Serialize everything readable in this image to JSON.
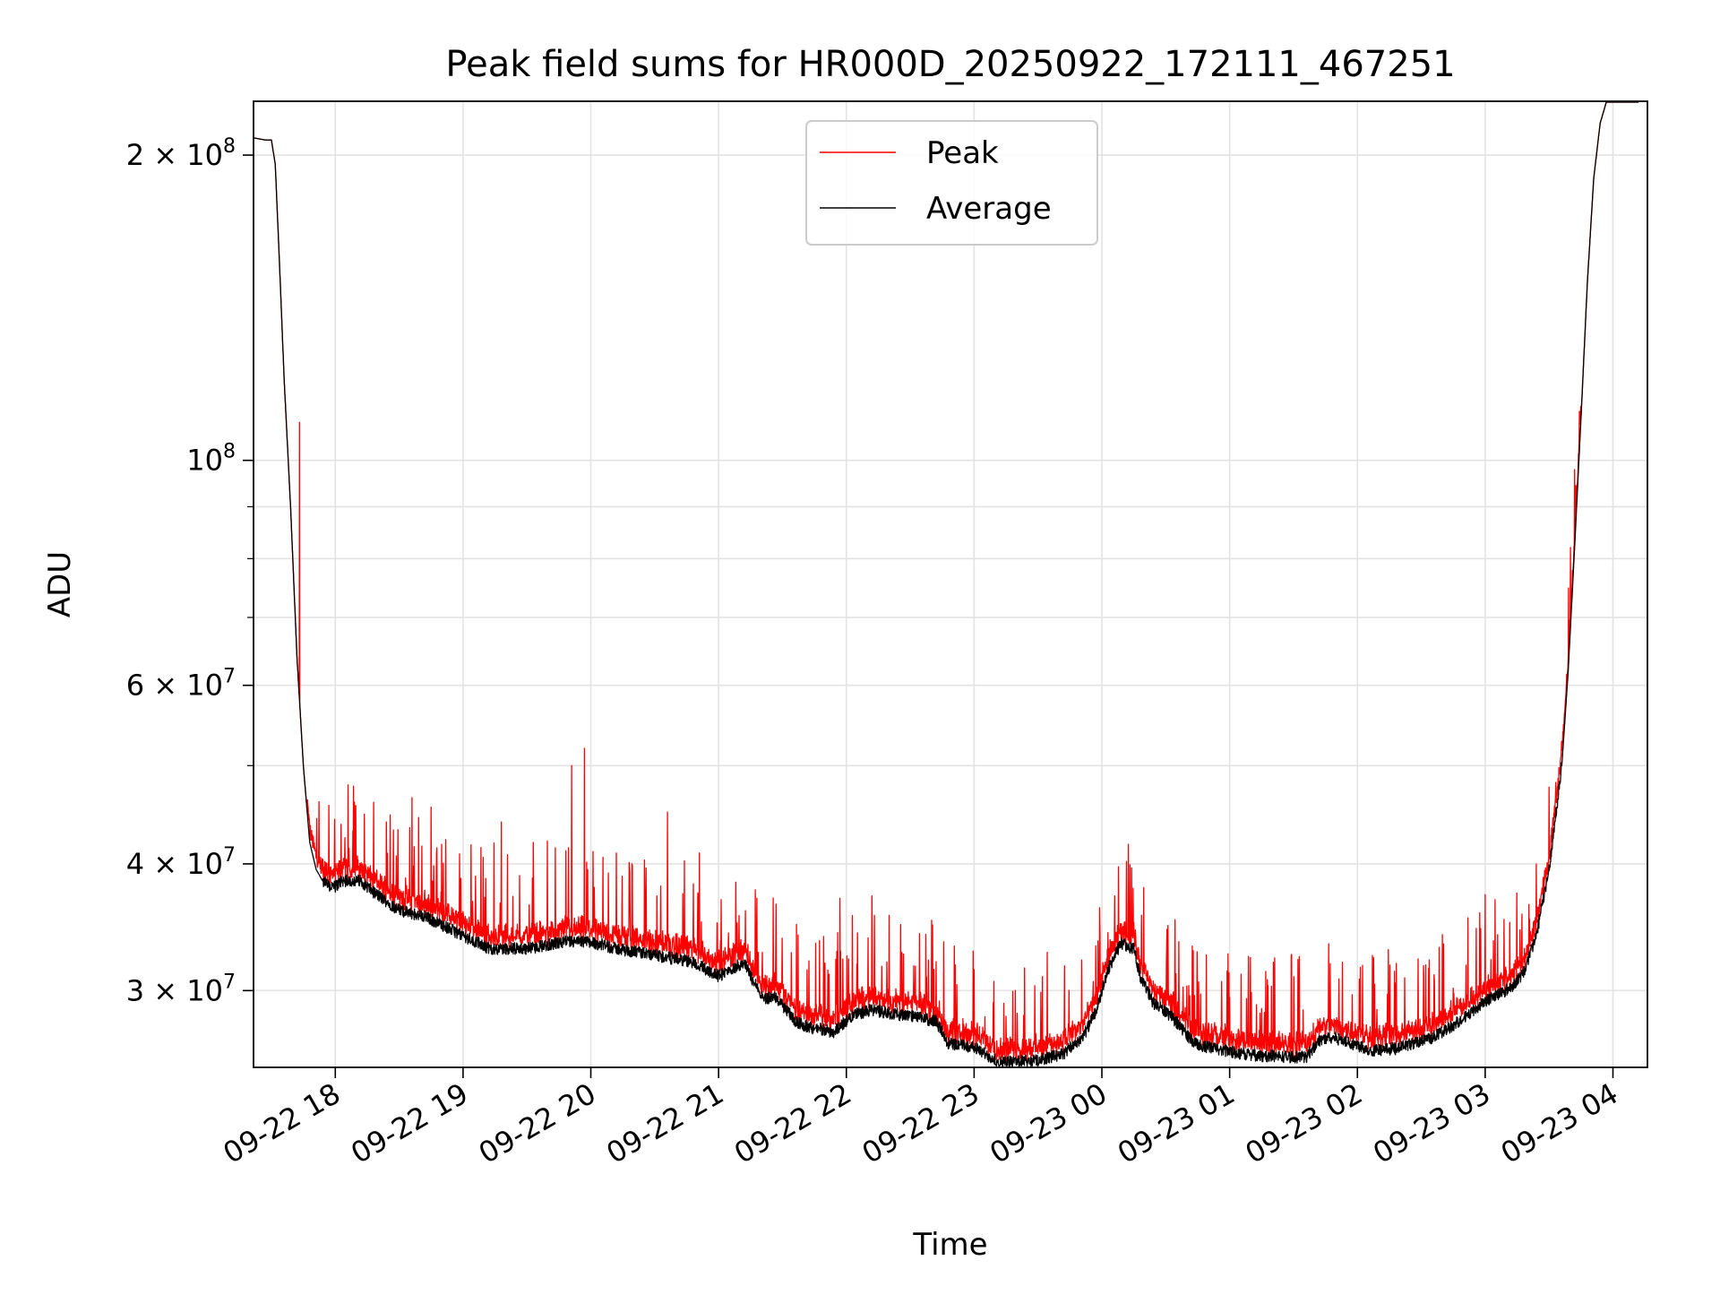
{
  "chart_data": {
    "type": "line",
    "title": "Peak field sums for HR000D_20250922_172111_467251",
    "xlabel": "Time",
    "ylabel": "ADU",
    "y_scale": "log",
    "ylim": [
      25200000,
      226000000
    ],
    "x_unit": "hours since 09-22 17:00",
    "xlim": [
      0.36,
      11.27
    ],
    "grid": true,
    "legend_position": "upper-center",
    "x_ticks": [
      {
        "value": 1,
        "label": "09-22 18"
      },
      {
        "value": 2,
        "label": "09-22 19"
      },
      {
        "value": 3,
        "label": "09-22 20"
      },
      {
        "value": 4,
        "label": "09-22 21"
      },
      {
        "value": 5,
        "label": "09-22 22"
      },
      {
        "value": 6,
        "label": "09-22 23"
      },
      {
        "value": 7,
        "label": "09-23 00"
      },
      {
        "value": 8,
        "label": "09-23 01"
      },
      {
        "value": 9,
        "label": "09-23 02"
      },
      {
        "value": 10,
        "label": "09-23 03"
      },
      {
        "value": 11,
        "label": "09-23 04"
      }
    ],
    "y_major_ticks": [
      {
        "value": 30000000,
        "label": "3 × 10",
        "exp": "7"
      },
      {
        "value": 40000000,
        "label": "4 × 10",
        "exp": "7"
      },
      {
        "value": 60000000,
        "label": "6 × 10",
        "exp": "7"
      },
      {
        "value": 100000000,
        "label": "10",
        "exp": "8"
      },
      {
        "value": 200000000,
        "label": "2 × 10",
        "exp": "8"
      }
    ],
    "y_minor_ticks": [
      50000000,
      70000000,
      80000000,
      90000000
    ],
    "series": [
      {
        "name": "Average",
        "color": "#000000",
        "x": [
          0.36,
          0.45,
          0.5,
          0.53,
          0.56,
          0.6,
          0.65,
          0.7,
          0.75,
          0.8,
          0.85,
          0.9,
          0.95,
          1.0,
          1.05,
          1.1,
          1.2,
          1.3,
          1.5,
          1.7,
          2.0,
          2.2,
          2.3,
          2.5,
          2.8,
          3.0,
          3.2,
          3.5,
          3.8,
          4.0,
          4.1,
          4.2,
          4.25,
          4.35,
          4.45,
          4.5,
          4.6,
          4.7,
          4.8,
          4.9,
          5.0,
          5.05,
          5.2,
          5.5,
          5.7,
          5.8,
          6.0,
          6.1,
          6.2,
          6.5,
          6.7,
          6.85,
          6.95,
          7.05,
          7.15,
          7.25,
          7.3,
          7.4,
          7.5,
          7.6,
          7.7,
          7.8,
          7.9,
          8.0,
          8.2,
          8.5,
          8.6,
          8.7,
          8.8,
          9.0,
          9.1,
          9.3,
          9.6,
          9.8,
          10.0,
          10.2,
          10.3,
          10.4,
          10.5,
          10.6,
          10.65,
          10.7,
          10.75,
          10.8,
          10.85,
          10.9,
          10.95,
          11.0,
          11.03,
          11.08
        ],
        "values": [
          208000000,
          207000000,
          207000000,
          196000000,
          160000000,
          120000000,
          90000000,
          64000000,
          50000000,
          42000000,
          39500000,
          38500000,
          38000000,
          38000000,
          38500000,
          38500000,
          38500000,
          37500000,
          36000000,
          35500000,
          34000000,
          33000000,
          33000000,
          33000000,
          33500000,
          33500000,
          33000000,
          32500000,
          32000000,
          31000000,
          31500000,
          32000000,
          31000000,
          29500000,
          29500000,
          29000000,
          28000000,
          27600000,
          27500000,
          27300000,
          28000000,
          28400000,
          28700000,
          28300000,
          28000000,
          26600000,
          26400000,
          25900000,
          25500000,
          25600000,
          26000000,
          27000000,
          28500000,
          31500000,
          33400000,
          33000000,
          31000000,
          29200000,
          28600000,
          27800000,
          26800000,
          26400000,
          26300000,
          26100000,
          25900000,
          25800000,
          25800000,
          26800000,
          27000000,
          26500000,
          26200000,
          26300000,
          27000000,
          28000000,
          29300000,
          30200000,
          31200000,
          34000000,
          39500000,
          50000000,
          62000000,
          82000000,
          110000000,
          150000000,
          190000000,
          215000000,
          226000000,
          226000000,
          226000000,
          226000000
        ]
      },
      {
        "name": "Peak",
        "color": "#ff0000",
        "spikes": [
          {
            "x": 0.72,
            "value": 109000000
          },
          {
            "x": 1.15,
            "value": 46000000
          },
          {
            "x": 1.3,
            "value": 46000000
          },
          {
            "x": 1.4,
            "value": 44000000
          },
          {
            "x": 1.6,
            "value": 46500000
          },
          {
            "x": 1.75,
            "value": 45500000
          },
          {
            "x": 2.3,
            "value": 44000000
          },
          {
            "x": 2.55,
            "value": 42000000
          },
          {
            "x": 2.85,
            "value": 50000000
          },
          {
            "x": 2.95,
            "value": 52000000
          },
          {
            "x": 3.2,
            "value": 41000000
          },
          {
            "x": 3.6,
            "value": 45000000
          },
          {
            "x": 3.85,
            "value": 41000000
          },
          {
            "x": 4.3,
            "value": 37000000
          },
          {
            "x": 4.45,
            "value": 36500000
          },
          {
            "x": 4.95,
            "value": 37000000
          },
          {
            "x": 5.2,
            "value": 37200000
          },
          {
            "x": 6.25,
            "value": 28300000
          },
          {
            "x": 7.1,
            "value": 37200000
          },
          {
            "x": 8.25,
            "value": 28800000
          },
          {
            "x": 10.0,
            "value": 37300000
          },
          {
            "x": 10.4,
            "value": 40000000
          }
        ]
      }
    ]
  }
}
